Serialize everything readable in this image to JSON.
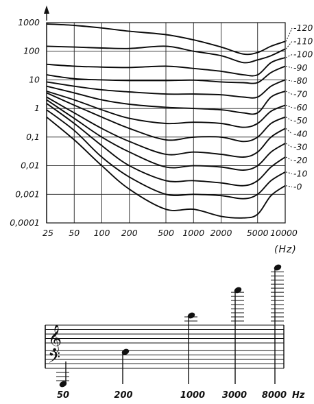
{
  "chart_data": {
    "type": "line",
    "x_scale": "log",
    "y_scale": "log",
    "x_ticks": [
      "25",
      "50",
      "100",
      "200",
      "500",
      "1000",
      "2000",
      "5000",
      "10000"
    ],
    "x_tick_values": [
      25,
      50,
      100,
      200,
      500,
      1000,
      2000,
      5000,
      10000
    ],
    "y_ticks": [
      "1000",
      "100",
      "10",
      "1",
      "0,1",
      "0,01",
      "0,001",
      "0,0001"
    ],
    "y_tick_values": [
      1000,
      100,
      10,
      1,
      0.1,
      0.01,
      0.001,
      0.0001
    ],
    "x_unit": "(Hz)",
    "xlim": [
      25,
      10000
    ],
    "ylim": [
      0.0001,
      1000
    ],
    "grid": true,
    "x": [
      25,
      50,
      100,
      200,
      500,
      1000,
      2000,
      3500,
      5000,
      7000,
      10000
    ],
    "series": [
      {
        "name": "120",
        "values": [
          900,
          800,
          650,
          500,
          380,
          250,
          140,
          80,
          90,
          150,
          220
        ]
      },
      {
        "name": "110",
        "values": [
          150,
          140,
          130,
          125,
          150,
          100,
          70,
          40,
          50,
          70,
          120
        ]
      },
      {
        "name": "100",
        "values": [
          35,
          30,
          28,
          27,
          30,
          25,
          20,
          15,
          15,
          40,
          60
        ]
      },
      {
        "name": "90",
        "values": [
          15,
          11,
          10,
          9.5,
          9.5,
          9.8,
          8.5,
          8,
          8,
          18,
          30
        ]
      },
      {
        "name": "80",
        "values": [
          8.5,
          6,
          4.5,
          3.8,
          3.2,
          3.2,
          3.0,
          2.5,
          2.5,
          6,
          10
        ]
      },
      {
        "name": "70",
        "values": [
          6,
          3.5,
          2.0,
          1.4,
          1.1,
          1.0,
          0.9,
          0.7,
          0.7,
          2.5,
          4
        ]
      },
      {
        "name": "60",
        "values": [
          4,
          2.0,
          0.9,
          0.45,
          0.3,
          0.33,
          0.3,
          0.22,
          0.3,
          0.8,
          1.3
        ]
      },
      {
        "name": "50",
        "values": [
          3.5,
          1.3,
          0.5,
          0.2,
          0.08,
          0.1,
          0.1,
          0.07,
          0.1,
          0.3,
          0.5
        ]
      },
      {
        "name": "40",
        "values": [
          2.5,
          0.7,
          0.2,
          0.07,
          0.025,
          0.03,
          0.025,
          0.02,
          0.03,
          0.1,
          0.2
        ]
      },
      {
        "name": "30",
        "values": [
          2.0,
          0.45,
          0.1,
          0.03,
          0.009,
          0.01,
          0.009,
          0.007,
          0.01,
          0.03,
          0.06
        ]
      },
      {
        "name": "20",
        "values": [
          1.5,
          0.3,
          0.05,
          0.01,
          0.003,
          0.003,
          0.0025,
          0.002,
          0.003,
          0.009,
          0.02
        ]
      },
      {
        "name": "10",
        "values": [
          0.9,
          0.17,
          0.02,
          0.004,
          0.001,
          0.001,
          0.0009,
          0.0007,
          0.001,
          0.003,
          0.006
        ]
      },
      {
        "name": "0",
        "values": [
          0.5,
          0.08,
          0.01,
          0.0015,
          0.0003,
          0.0003,
          0.00017,
          0.00015,
          0.0002,
          0.0009,
          0.002
        ]
      }
    ],
    "phon_labels": [
      "120",
      "110",
      "100",
      "90",
      "80",
      "70",
      "60",
      "50",
      "40",
      "30",
      "20",
      "10",
      "0"
    ]
  },
  "staff": {
    "note_labels": [
      "50",
      "200",
      "1000",
      "3000",
      "8000"
    ],
    "note_values": [
      50,
      200,
      1000,
      3000,
      8000
    ],
    "unit": "Hz",
    "treble_clef": "𝄞",
    "bass_clef": "𝄢"
  }
}
